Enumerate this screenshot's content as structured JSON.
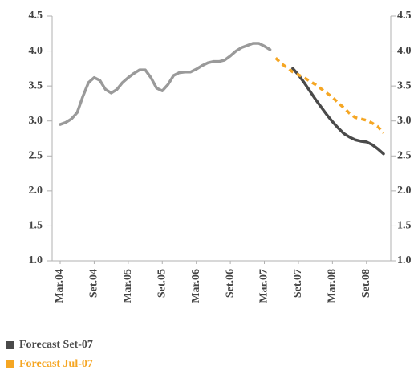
{
  "chart_data": {
    "type": "line",
    "categories": [
      "Mar.04",
      null,
      null,
      null,
      null,
      null,
      "Set.04",
      null,
      null,
      null,
      null,
      null,
      "Mar.05",
      null,
      null,
      null,
      null,
      null,
      "Set.05",
      null,
      null,
      null,
      null,
      null,
      "Mar.06",
      null,
      null,
      null,
      null,
      null,
      "Set.06",
      null,
      null,
      null,
      null,
      null,
      "Mar.07",
      null,
      null,
      null,
      null,
      null,
      "Set.07",
      null,
      null,
      null,
      null,
      null,
      "Mar.08",
      null,
      null,
      null,
      null,
      null,
      "Set.08",
      null,
      null,
      null
    ],
    "series": [
      {
        "color": "#9a9a9a",
        "values": [
          2.95,
          2.98,
          3.03,
          3.12,
          3.35,
          3.55,
          3.62,
          3.58,
          3.45,
          3.4,
          3.45,
          3.55,
          3.62,
          3.68,
          3.73,
          3.73,
          3.62,
          3.47,
          3.43,
          3.52,
          3.65,
          3.69,
          3.7,
          3.7,
          3.74,
          3.79,
          3.83,
          3.85,
          3.85,
          3.87,
          3.93,
          4.0,
          4.05,
          4.08,
          4.11,
          4.11,
          4.07,
          4.02,
          null,
          null,
          null,
          null,
          null,
          null,
          null,
          null,
          null,
          null,
          null,
          null,
          null,
          null,
          null,
          null,
          null,
          null,
          null,
          null
        ]
      },
      {
        "name": "Forecast Set-07",
        "color": "#4a4a4a",
        "values": [
          null,
          null,
          null,
          null,
          null,
          null,
          null,
          null,
          null,
          null,
          null,
          null,
          null,
          null,
          null,
          null,
          null,
          null,
          null,
          null,
          null,
          null,
          null,
          null,
          null,
          null,
          null,
          null,
          null,
          null,
          null,
          null,
          null,
          null,
          null,
          null,
          null,
          null,
          null,
          null,
          null,
          3.75,
          3.66,
          3.55,
          3.43,
          3.31,
          3.2,
          3.09,
          2.99,
          2.9,
          2.82,
          2.77,
          2.73,
          2.71,
          2.7,
          2.66,
          2.6,
          2.53
        ]
      },
      {
        "name": "Forecast Jul-07",
        "color": "#f5a623",
        "dashed": true,
        "values": [
          null,
          null,
          null,
          null,
          null,
          null,
          null,
          null,
          null,
          null,
          null,
          null,
          null,
          null,
          null,
          null,
          null,
          null,
          null,
          null,
          null,
          null,
          null,
          null,
          null,
          null,
          null,
          null,
          null,
          null,
          null,
          null,
          null,
          null,
          null,
          null,
          null,
          null,
          3.9,
          3.82,
          3.76,
          3.7,
          3.66,
          3.62,
          3.57,
          3.52,
          3.46,
          3.4,
          3.34,
          3.26,
          3.19,
          3.11,
          3.05,
          3.03,
          3.01,
          2.97,
          2.92,
          2.83
        ]
      }
    ],
    "ylim": [
      1,
      4.5
    ],
    "yticks": [
      {
        "value": 1,
        "label": "1.0"
      },
      1.5,
      {
        "value": 2,
        "label": "2.0"
      },
      2.5,
      {
        "value": 3,
        "label": "3.0"
      },
      3.5,
      {
        "value": 4,
        "label": "4.0"
      },
      4.5
    ],
    "right_axis": true,
    "legend": "bottom-left"
  }
}
